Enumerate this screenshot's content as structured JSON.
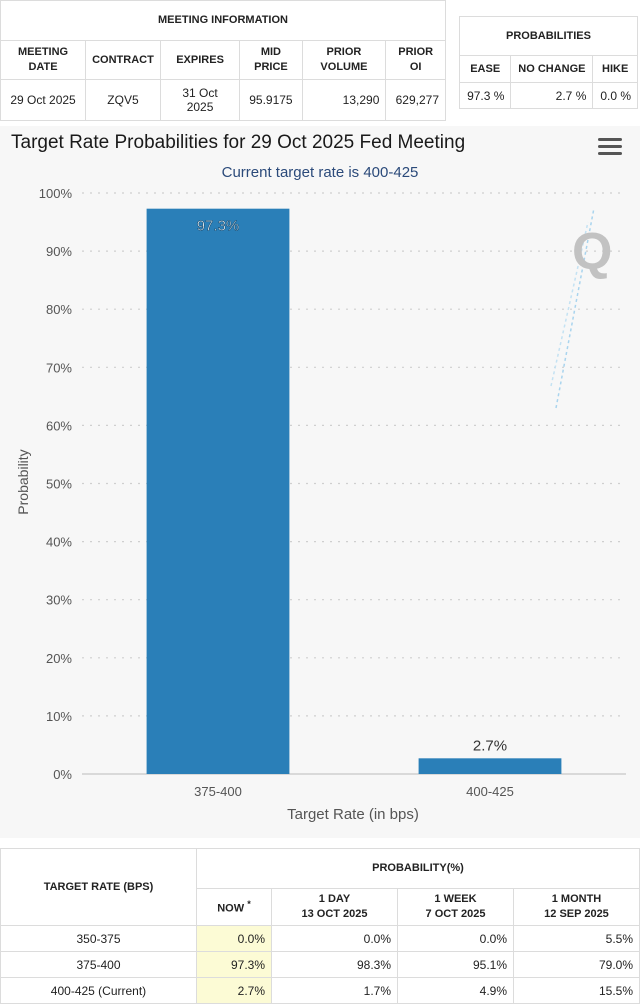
{
  "meeting_info": {
    "title": "MEETING INFORMATION",
    "headers": [
      "MEETING DATE",
      "CONTRACT",
      "EXPIRES",
      "MID PRICE",
      "PRIOR VOLUME",
      "PRIOR OI"
    ],
    "row": [
      "29 Oct 2025",
      "ZQV5",
      "31 Oct 2025",
      "95.9175",
      "13,290",
      "629,277"
    ]
  },
  "probabilities": {
    "title": "PROBABILITIES",
    "headers": [
      "EASE",
      "NO CHANGE",
      "HIKE"
    ],
    "row": [
      "97.3 %",
      "2.7 %",
      "0.0 %"
    ]
  },
  "chart_data": {
    "type": "bar",
    "title": "Target Rate Probabilities for 29 Oct 2025 Fed Meeting",
    "subtitle": "Current target rate is 400-425",
    "xlabel": "Target Rate (in bps)",
    "ylabel": "Probability",
    "categories": [
      "375-400",
      "400-425"
    ],
    "values": [
      97.3,
      2.7
    ],
    "data_labels": [
      "97.3%",
      "2.7%"
    ],
    "ylim": [
      0,
      100
    ],
    "yticks": [
      0,
      10,
      20,
      30,
      40,
      50,
      60,
      70,
      80,
      90,
      100
    ],
    "ytick_suffix": "%",
    "grid": true,
    "bar_color": "#2a7fb8",
    "watermark": "Q"
  },
  "rates_table": {
    "col_header": "TARGET RATE (BPS)",
    "group_header": "PROBABILITY(%)",
    "sub_headers": [
      {
        "line1": "NOW",
        "line2": "",
        "mark": "*"
      },
      {
        "line1": "1 DAY",
        "line2": "13 OCT 2025",
        "mark": ""
      },
      {
        "line1": "1 WEEK",
        "line2": "7 OCT 2025",
        "mark": ""
      },
      {
        "line1": "1 MONTH",
        "line2": "12 SEP 2025",
        "mark": ""
      }
    ],
    "rows": [
      {
        "rate": "350-375",
        "values": [
          "0.0%",
          "0.0%",
          "0.0%",
          "5.5%"
        ]
      },
      {
        "rate": "375-400",
        "values": [
          "97.3%",
          "98.3%",
          "95.1%",
          "79.0%"
        ]
      },
      {
        "rate": "400-425 (Current)",
        "values": [
          "2.7%",
          "1.7%",
          "4.9%",
          "15.5%"
        ]
      }
    ]
  }
}
